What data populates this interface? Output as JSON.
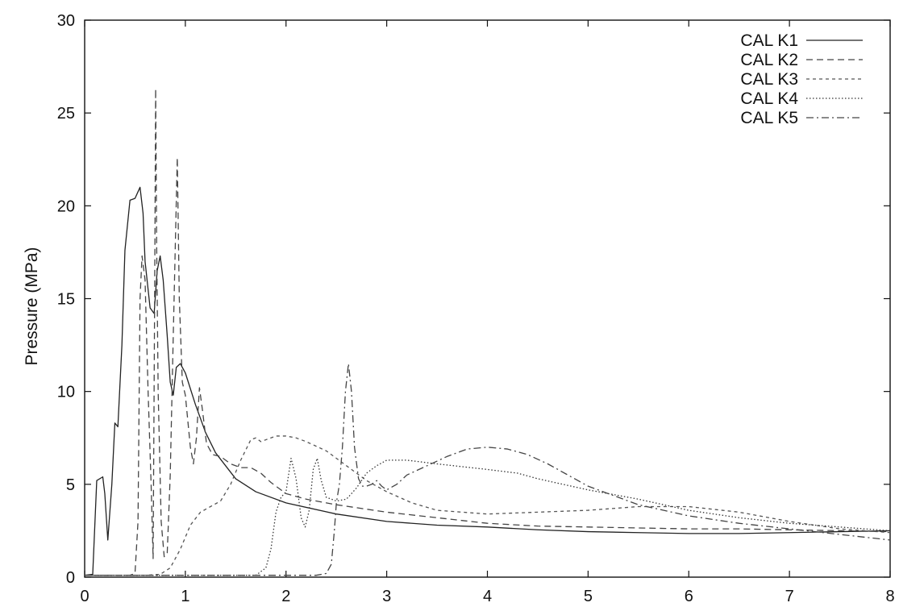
{
  "chart_data": {
    "type": "line",
    "title": "",
    "xlabel": "",
    "ylabel": "Pressure (MPa)",
    "xlim": [
      0,
      8
    ],
    "ylim": [
      0,
      30
    ],
    "x_ticks": [
      "0",
      "1",
      "2",
      "3",
      "4",
      "5",
      "6",
      "7",
      "8"
    ],
    "y_ticks": [
      "0",
      "5",
      "10",
      "15",
      "20",
      "25",
      "30"
    ],
    "grid": false,
    "legend_position": "top-right",
    "series": [
      {
        "name": "CAL K1",
        "dash": "solid",
        "color": "#222222",
        "points": [
          [
            0,
            0.1
          ],
          [
            0.08,
            0.15
          ],
          [
            0.12,
            5.2
          ],
          [
            0.18,
            5.4
          ],
          [
            0.2,
            4.5
          ],
          [
            0.23,
            2.0
          ],
          [
            0.27,
            5.0
          ],
          [
            0.3,
            8.3
          ],
          [
            0.33,
            8.1
          ],
          [
            0.37,
            12.5
          ],
          [
            0.4,
            17.6
          ],
          [
            0.45,
            20.3
          ],
          [
            0.5,
            20.4
          ],
          [
            0.55,
            21.0
          ],
          [
            0.58,
            19.6
          ],
          [
            0.6,
            17.0
          ],
          [
            0.65,
            14.5
          ],
          [
            0.69,
            14.2
          ],
          [
            0.72,
            16.5
          ],
          [
            0.75,
            17.3
          ],
          [
            0.78,
            16.0
          ],
          [
            0.82,
            13.0
          ],
          [
            0.85,
            10.5
          ],
          [
            0.88,
            9.8
          ],
          [
            0.91,
            11.3
          ],
          [
            0.95,
            11.5
          ],
          [
            1.0,
            11.0
          ],
          [
            1.1,
            9.3
          ],
          [
            1.2,
            7.8
          ],
          [
            1.3,
            6.7
          ],
          [
            1.4,
            6.0
          ],
          [
            1.5,
            5.3
          ],
          [
            1.7,
            4.6
          ],
          [
            2.0,
            4.0
          ],
          [
            2.5,
            3.4
          ],
          [
            3.0,
            3.0
          ],
          [
            3.5,
            2.8
          ],
          [
            4.0,
            2.7
          ],
          [
            4.5,
            2.55
          ],
          [
            5.0,
            2.45
          ],
          [
            5.5,
            2.4
          ],
          [
            6.0,
            2.35
          ],
          [
            6.5,
            2.35
          ],
          [
            7.0,
            2.4
          ],
          [
            7.5,
            2.45
          ],
          [
            8.0,
            2.5
          ]
        ]
      },
      {
        "name": "CAL K2",
        "dash": "dashed",
        "color": "#444444",
        "points": [
          [
            0,
            0.1
          ],
          [
            0.45,
            0.1
          ],
          [
            0.5,
            0.2
          ],
          [
            0.53,
            3.0
          ],
          [
            0.55,
            15.0
          ],
          [
            0.57,
            17.3
          ],
          [
            0.6,
            16.0
          ],
          [
            0.63,
            10.0
          ],
          [
            0.66,
            5.0
          ],
          [
            0.68,
            1.0
          ],
          [
            0.695,
            15.0
          ],
          [
            0.705,
            26.3
          ],
          [
            0.715,
            18.0
          ],
          [
            0.73,
            10.0
          ],
          [
            0.76,
            3.0
          ],
          [
            0.79,
            1.1
          ],
          [
            0.82,
            1.3
          ],
          [
            0.85,
            5.5
          ],
          [
            0.88,
            13.0
          ],
          [
            0.905,
            19.0
          ],
          [
            0.92,
            22.6
          ],
          [
            0.94,
            15.0
          ],
          [
            0.97,
            10.5
          ],
          [
            1.0,
            9.8
          ],
          [
            1.05,
            7.0
          ],
          [
            1.08,
            6.1
          ],
          [
            1.11,
            7.5
          ],
          [
            1.14,
            10.2
          ],
          [
            1.17,
            9.0
          ],
          [
            1.21,
            7.2
          ],
          [
            1.27,
            6.6
          ],
          [
            1.35,
            6.5
          ],
          [
            1.45,
            6.1
          ],
          [
            1.55,
            5.9
          ],
          [
            1.65,
            5.9
          ],
          [
            1.75,
            5.6
          ],
          [
            1.85,
            5.1
          ],
          [
            2.0,
            4.5
          ],
          [
            2.2,
            4.2
          ],
          [
            2.5,
            3.9
          ],
          [
            3.0,
            3.5
          ],
          [
            3.5,
            3.2
          ],
          [
            4.0,
            2.9
          ],
          [
            4.5,
            2.75
          ],
          [
            5.0,
            2.7
          ],
          [
            5.5,
            2.65
          ],
          [
            6.0,
            2.6
          ],
          [
            6.5,
            2.6
          ],
          [
            7.0,
            2.55
          ],
          [
            7.5,
            2.5
          ],
          [
            8.0,
            2.45
          ]
        ]
      },
      {
        "name": "CAL K3",
        "dash": "short-dashed",
        "color": "#555555",
        "points": [
          [
            0,
            0.1
          ],
          [
            0.6,
            0.1
          ],
          [
            0.75,
            0.15
          ],
          [
            0.85,
            0.5
          ],
          [
            0.95,
            1.5
          ],
          [
            1.05,
            2.8
          ],
          [
            1.15,
            3.5
          ],
          [
            1.25,
            3.8
          ],
          [
            1.35,
            4.1
          ],
          [
            1.45,
            5.0
          ],
          [
            1.55,
            6.3
          ],
          [
            1.65,
            7.4
          ],
          [
            1.7,
            7.5
          ],
          [
            1.75,
            7.3
          ],
          [
            1.8,
            7.4
          ],
          [
            1.9,
            7.6
          ],
          [
            2.0,
            7.6
          ],
          [
            2.1,
            7.5
          ],
          [
            2.2,
            7.3
          ],
          [
            2.4,
            6.8
          ],
          [
            2.6,
            6.0
          ],
          [
            2.8,
            5.2
          ],
          [
            3.0,
            4.6
          ],
          [
            3.25,
            4.0
          ],
          [
            3.5,
            3.6
          ],
          [
            4.0,
            3.4
          ],
          [
            4.5,
            3.5
          ],
          [
            5.0,
            3.6
          ],
          [
            5.5,
            3.8
          ],
          [
            6.0,
            3.8
          ],
          [
            6.5,
            3.5
          ],
          [
            7.0,
            3.0
          ],
          [
            7.5,
            2.6
          ],
          [
            8.0,
            2.4
          ]
        ]
      },
      {
        "name": "CAL K4",
        "dash": "dotted",
        "color": "#333333",
        "points": [
          [
            0,
            0.1
          ],
          [
            1.7,
            0.1
          ],
          [
            1.8,
            0.5
          ],
          [
            1.85,
            1.5
          ],
          [
            1.9,
            3.5
          ],
          [
            1.95,
            4.3
          ],
          [
            2.0,
            4.6
          ],
          [
            2.05,
            6.4
          ],
          [
            2.1,
            5.3
          ],
          [
            2.15,
            3.2
          ],
          [
            2.19,
            2.7
          ],
          [
            2.23,
            3.6
          ],
          [
            2.27,
            5.8
          ],
          [
            2.31,
            6.4
          ],
          [
            2.35,
            5.2
          ],
          [
            2.4,
            4.3
          ],
          [
            2.5,
            4.1
          ],
          [
            2.6,
            4.2
          ],
          [
            2.7,
            4.8
          ],
          [
            2.8,
            5.6
          ],
          [
            2.9,
            6.0
          ],
          [
            3.0,
            6.3
          ],
          [
            3.2,
            6.3
          ],
          [
            3.5,
            6.1
          ],
          [
            4.0,
            5.8
          ],
          [
            4.3,
            5.6
          ],
          [
            4.5,
            5.3
          ],
          [
            5.0,
            4.7
          ],
          [
            5.5,
            4.2
          ],
          [
            6.0,
            3.6
          ],
          [
            6.5,
            3.2
          ],
          [
            7.0,
            2.9
          ],
          [
            7.5,
            2.7
          ],
          [
            8.0,
            2.5
          ]
        ]
      },
      {
        "name": "CAL K5",
        "dash": "dash-dot",
        "color": "#444444",
        "points": [
          [
            0,
            0.1
          ],
          [
            2.3,
            0.1
          ],
          [
            2.4,
            0.2
          ],
          [
            2.45,
            0.7
          ],
          [
            2.48,
            2.5
          ],
          [
            2.5,
            4.0
          ],
          [
            2.53,
            5.0
          ],
          [
            2.56,
            7.0
          ],
          [
            2.59,
            10.0
          ],
          [
            2.62,
            11.5
          ],
          [
            2.65,
            10.0
          ],
          [
            2.68,
            7.0
          ],
          [
            2.72,
            5.3
          ],
          [
            2.76,
            4.9
          ],
          [
            2.8,
            4.9
          ],
          [
            2.85,
            5.0
          ],
          [
            2.9,
            5.2
          ],
          [
            2.95,
            4.9
          ],
          [
            3.0,
            4.7
          ],
          [
            3.1,
            5.0
          ],
          [
            3.2,
            5.5
          ],
          [
            3.4,
            6.0
          ],
          [
            3.6,
            6.5
          ],
          [
            3.8,
            6.9
          ],
          [
            4.0,
            7.0
          ],
          [
            4.2,
            6.9
          ],
          [
            4.4,
            6.6
          ],
          [
            4.6,
            6.1
          ],
          [
            4.8,
            5.5
          ],
          [
            5.0,
            4.9
          ],
          [
            5.5,
            3.9
          ],
          [
            6.0,
            3.3
          ],
          [
            6.5,
            2.9
          ],
          [
            7.0,
            2.6
          ],
          [
            7.5,
            2.3
          ],
          [
            8.0,
            2.0
          ]
        ]
      }
    ]
  }
}
